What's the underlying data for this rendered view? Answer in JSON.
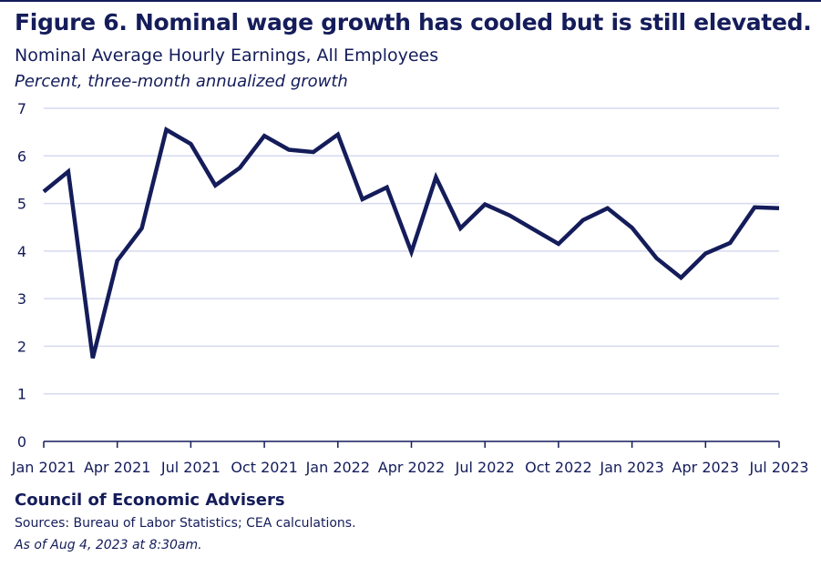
{
  "header": {
    "title": "Figure 6. Nominal wage growth has cooled but is still elevated.",
    "subtitle": "Nominal Average Hourly Earnings, All Employees",
    "units": "Percent, three-month annualized growth"
  },
  "footer": {
    "organization": "Council of Economic Advisers",
    "sources": "Sources: Bureau of Labor Statistics; CEA calculations.",
    "as_of": "As of Aug 4, 2023 at 8:30am."
  },
  "colors": {
    "line": "#141c5a",
    "grid": "#d6daf0",
    "axis": "#141c5a",
    "text": "#141c5a"
  },
  "chart_data": {
    "type": "line",
    "title": "Nominal Average Hourly Earnings, All Employees",
    "ylabel": "Percent, three-month annualized growth",
    "xlabel": "",
    "ylim": [
      0,
      7
    ],
    "yticks": [
      0,
      1,
      2,
      3,
      4,
      5,
      6,
      7
    ],
    "xticks": [
      "Jan 2021",
      "Apr 2021",
      "Jul 2021",
      "Oct 2021",
      "Jan 2022",
      "Apr 2022",
      "Jul 2022",
      "Oct 2022",
      "Jan 2023",
      "Apr 2023",
      "Jul 2023"
    ],
    "grid": "horizontal",
    "legend": "none",
    "series": [
      {
        "x": [
          "2021-01",
          "2021-02",
          "2021-03",
          "2021-04",
          "2021-05",
          "2021-06",
          "2021-07",
          "2021-08",
          "2021-09",
          "2021-10",
          "2021-11",
          "2021-12",
          "2022-01",
          "2022-02",
          "2022-03",
          "2022-04",
          "2022-05",
          "2022-06",
          "2022-07",
          "2022-08",
          "2022-09",
          "2022-10",
          "2022-11",
          "2022-12",
          "2023-01",
          "2023-02",
          "2023-03",
          "2023-04",
          "2023-05",
          "2023-06",
          "2023-07"
        ],
        "values": [
          5.25,
          5.67,
          1.75,
          3.8,
          4.48,
          6.55,
          6.25,
          5.38,
          5.75,
          6.42,
          6.13,
          6.08,
          6.45,
          5.09,
          5.34,
          3.98,
          5.55,
          4.48,
          4.98,
          4.75,
          4.45,
          4.15,
          4.65,
          4.9,
          4.49,
          3.85,
          3.44,
          3.95,
          4.17,
          4.92,
          4.9
        ]
      }
    ]
  }
}
